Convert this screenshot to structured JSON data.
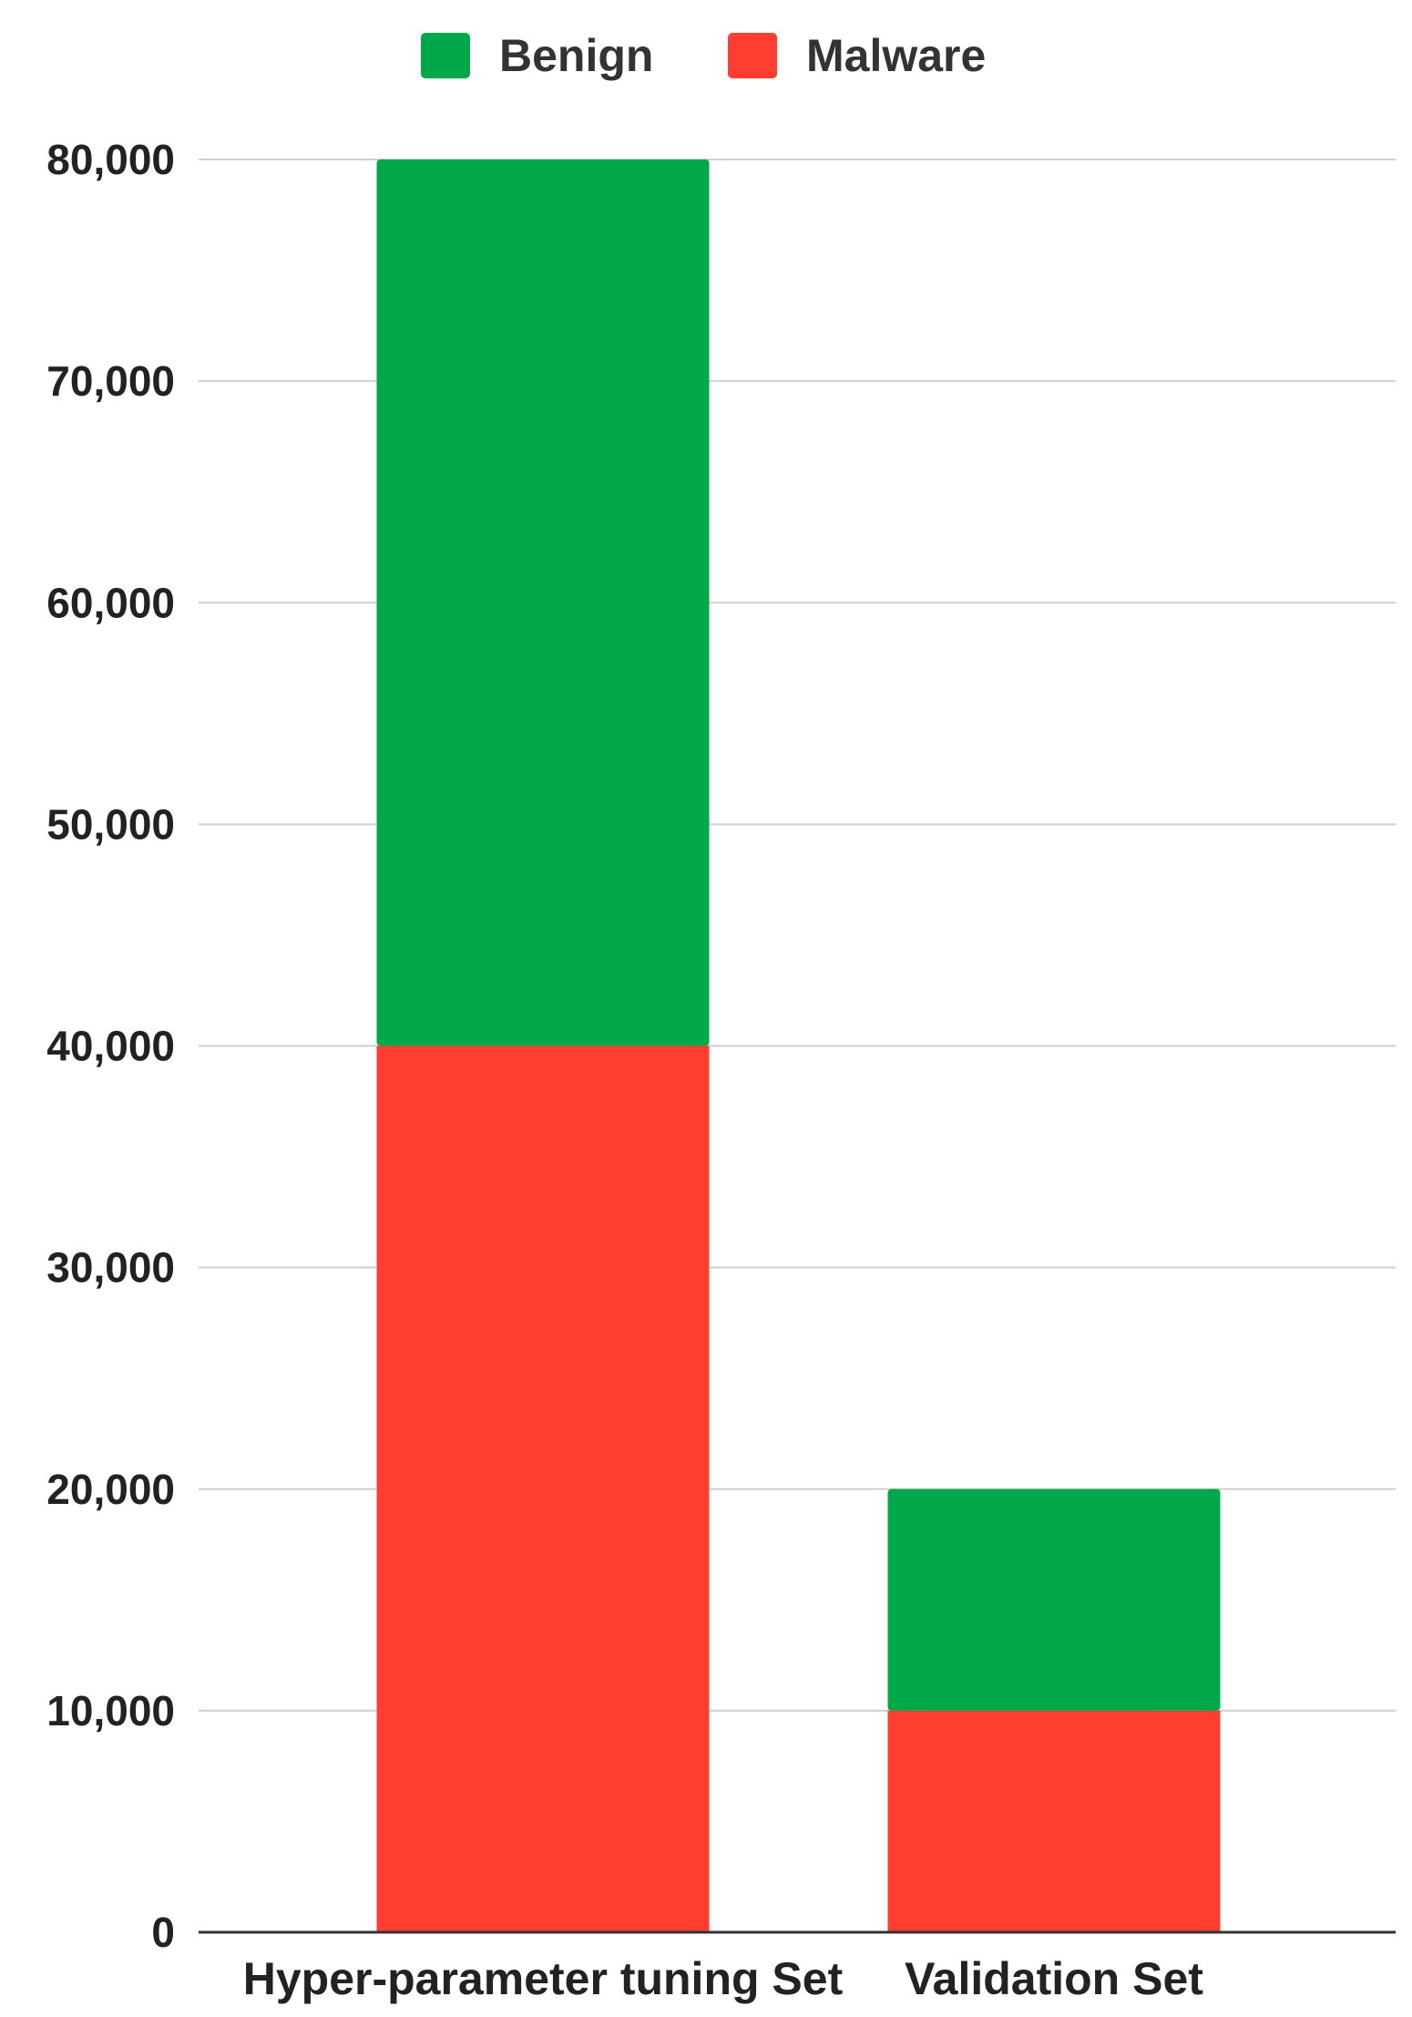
{
  "chart_data": {
    "type": "bar",
    "stacked": true,
    "categories": [
      "Hyper-parameter tuning Set",
      "Validation Set"
    ],
    "series": [
      {
        "name": "Malware",
        "values": [
          40000,
          10000
        ],
        "color": "#ff3d30"
      },
      {
        "name": "Benign",
        "values": [
          40000,
          10000
        ],
        "color": "#00a84a"
      }
    ],
    "legend": [
      {
        "name": "Benign",
        "color": "#00a84a"
      },
      {
        "name": "Malware",
        "color": "#ff3d30"
      }
    ],
    "legend_position": "top",
    "ylim": [
      0,
      80000
    ],
    "yticks": [
      "0",
      "10,000",
      "20,000",
      "30,000",
      "40,000",
      "50,000",
      "60,000",
      "70,000",
      "80,000"
    ],
    "ytick_values": [
      0,
      10000,
      20000,
      30000,
      40000,
      50000,
      60000,
      70000,
      80000
    ],
    "grid": true,
    "title": "",
    "xlabel": "",
    "ylabel": ""
  }
}
